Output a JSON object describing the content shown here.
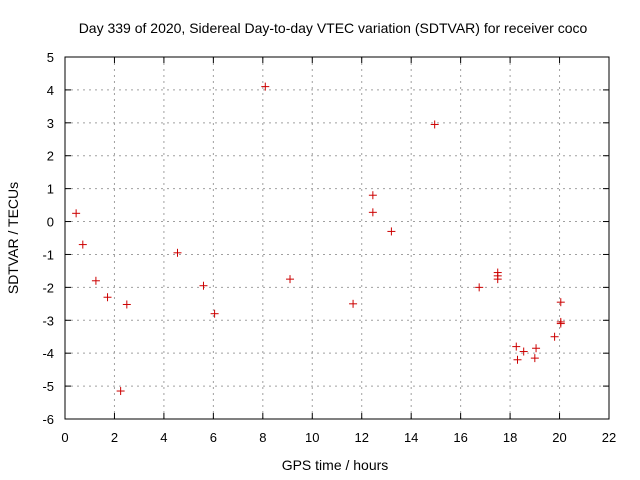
{
  "chart_data": {
    "type": "scatter",
    "title": "Day 339 of 2020, Sidereal Day-to-day VTEC variation (SDTVAR) for receiver coco",
    "xlabel": "GPS time / hours",
    "ylabel": "SDTVAR / TECUs",
    "xlim": [
      0,
      22
    ],
    "ylim": [
      -6,
      5
    ],
    "xticks": [
      0,
      2,
      4,
      6,
      8,
      10,
      12,
      14,
      16,
      18,
      20,
      22
    ],
    "yticks": [
      -6,
      -5,
      -4,
      -3,
      -2,
      -1,
      0,
      1,
      2,
      3,
      4,
      5
    ],
    "grid": true,
    "marker": "plus",
    "marker_color": "#cc0000",
    "series": [
      {
        "name": "SDTVAR",
        "points": [
          [
            0.45,
            0.25
          ],
          [
            0.72,
            -0.7
          ],
          [
            1.25,
            -1.8
          ],
          [
            1.72,
            -2.3
          ],
          [
            2.25,
            -5.15
          ],
          [
            2.5,
            -2.52
          ],
          [
            4.55,
            -0.95
          ],
          [
            5.6,
            -1.95
          ],
          [
            6.05,
            -2.8
          ],
          [
            8.1,
            4.1
          ],
          [
            9.1,
            -1.75
          ],
          [
            11.65,
            -2.5
          ],
          [
            12.45,
            0.8
          ],
          [
            12.45,
            0.28
          ],
          [
            13.2,
            -0.3
          ],
          [
            14.95,
            2.95
          ],
          [
            16.75,
            -2.0
          ],
          [
            17.5,
            -1.55
          ],
          [
            17.5,
            -1.65
          ],
          [
            17.5,
            -1.75
          ],
          [
            18.25,
            -3.8
          ],
          [
            18.3,
            -4.2
          ],
          [
            18.55,
            -3.95
          ],
          [
            19.0,
            -4.15
          ],
          [
            19.05,
            -3.85
          ],
          [
            19.8,
            -3.5
          ],
          [
            20.05,
            -2.45
          ],
          [
            20.05,
            -3.05
          ],
          [
            20.05,
            -3.1
          ]
        ]
      }
    ]
  }
}
